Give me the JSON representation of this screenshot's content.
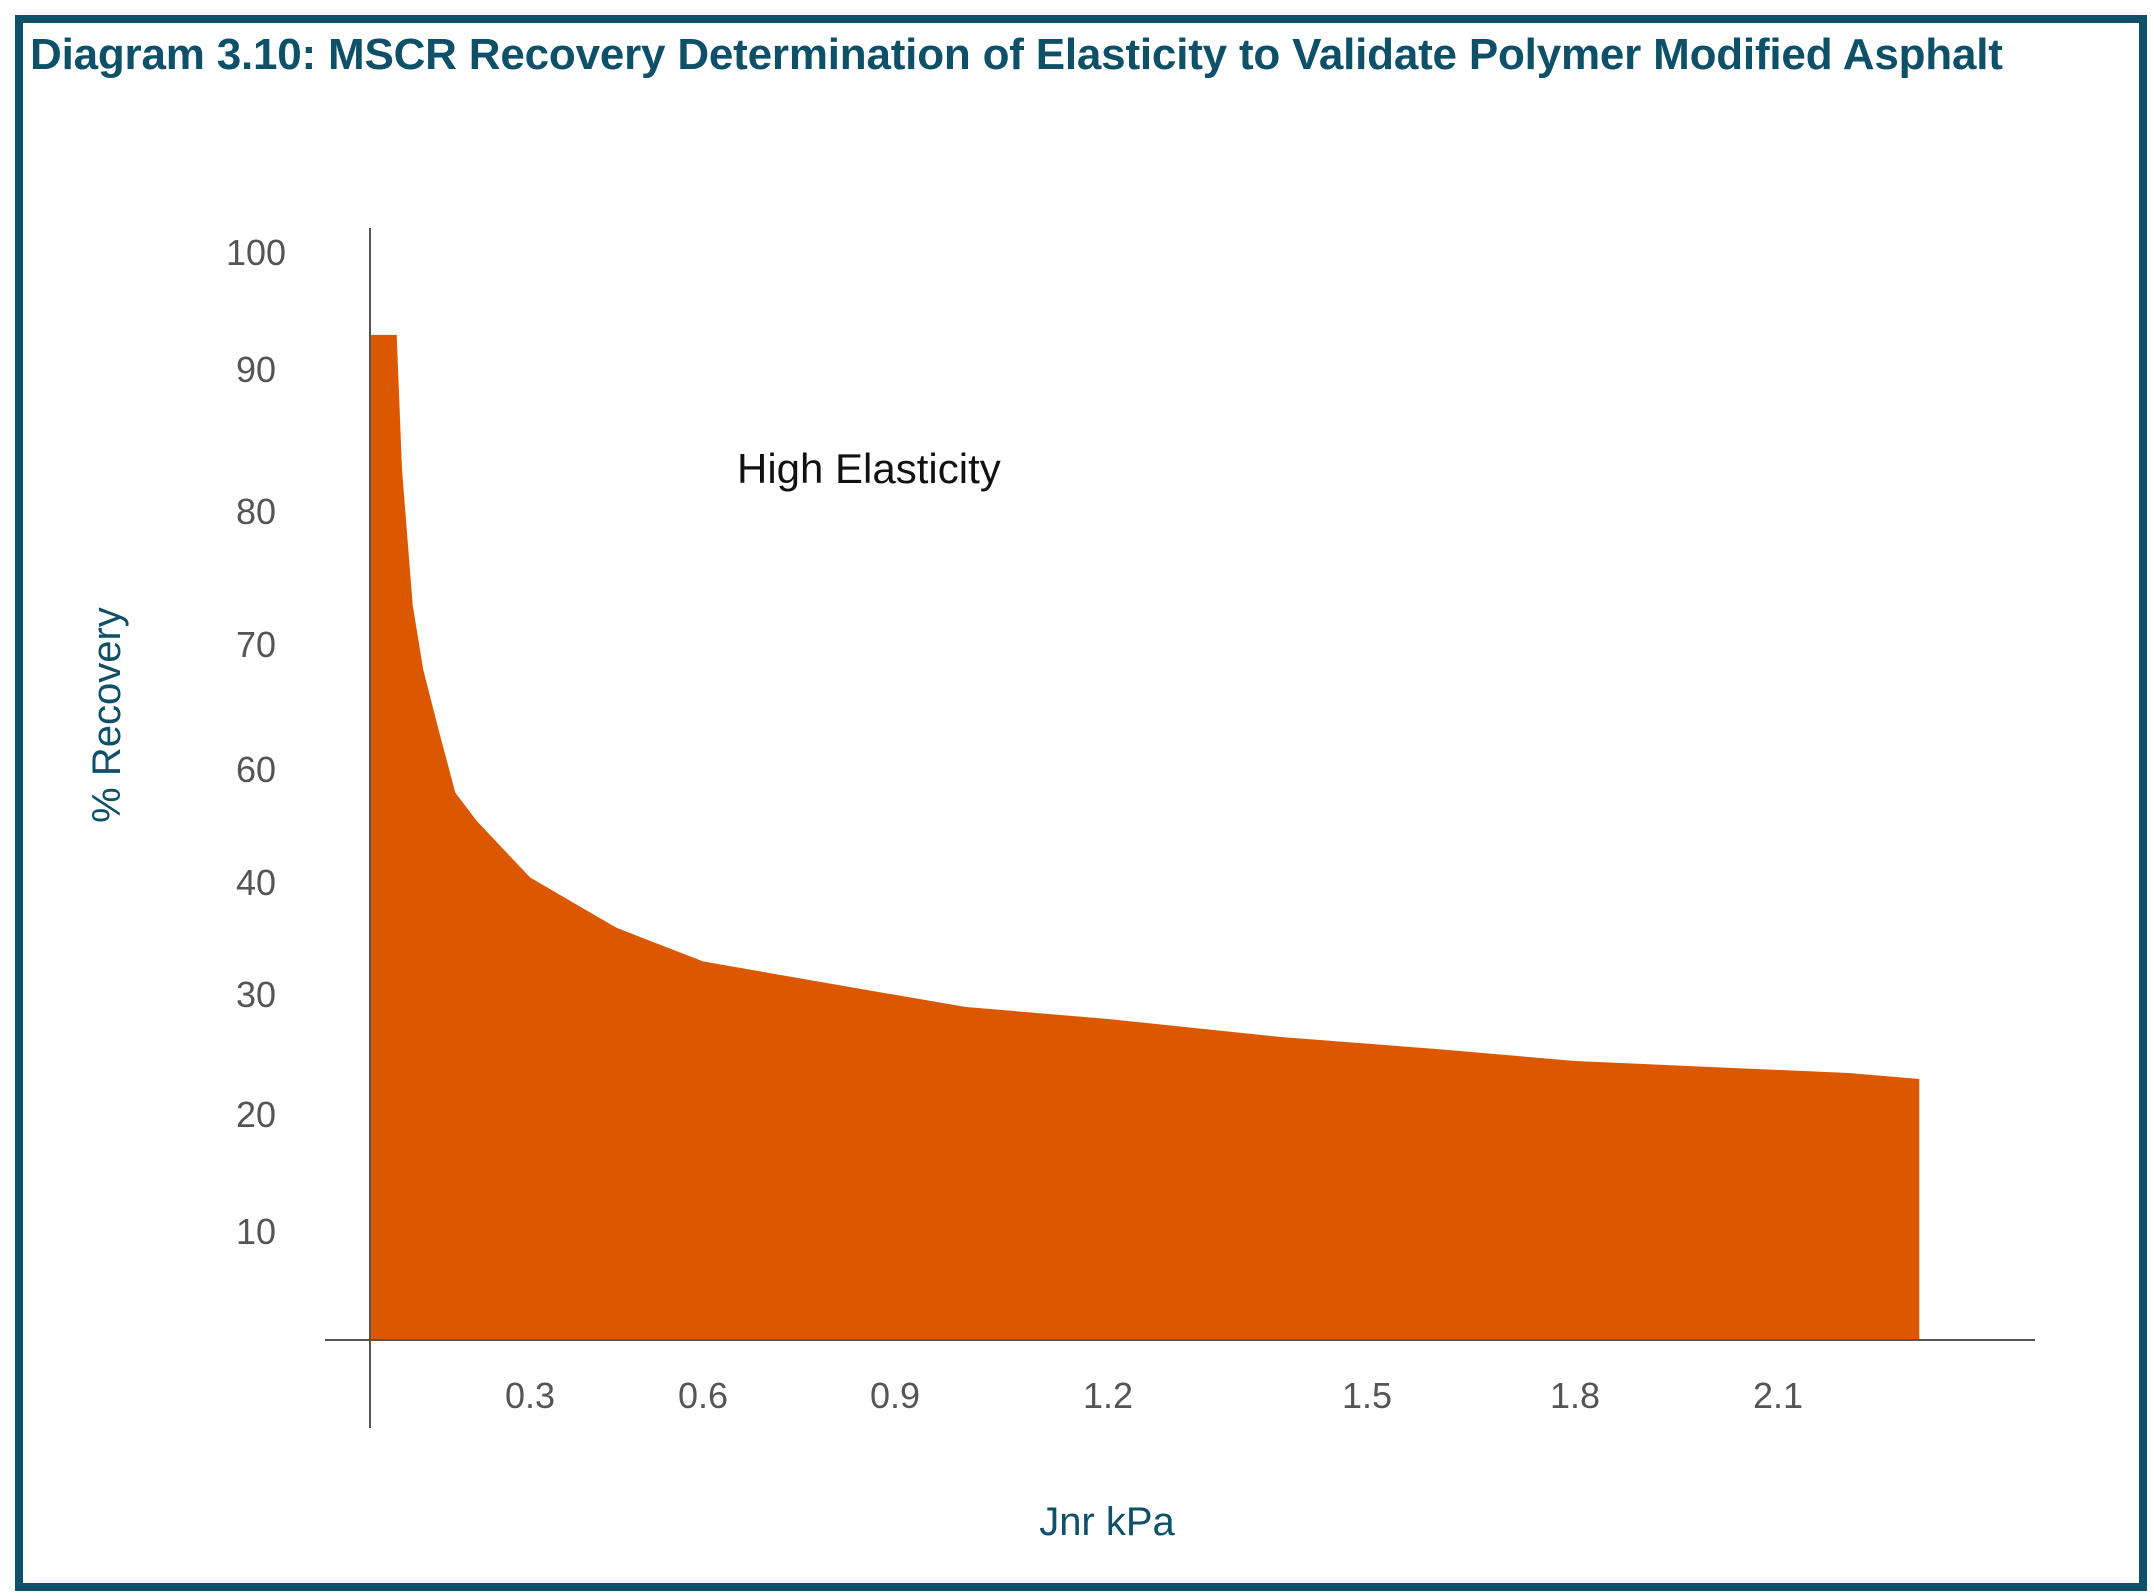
{
  "title": "Diagram 3.10: MSCR Recovery Determination of Elasticity to Validate Polymer Modified Asphalt",
  "colors": {
    "frame": "#0d5068",
    "title": "#0d5068",
    "fill": "#db5800",
    "axis": "#555555",
    "tick_text": "#555555",
    "axis_title": "#0d5068"
  },
  "chart_data": {
    "type": "area",
    "title": "Diagram 3.10: MSCR Recovery Determination of Elasticity to Validate Polymer Modified Asphalt",
    "xlabel": "Jnr kPa",
    "ylabel": "% Recovery",
    "x_ticks": [
      "0.3",
      "0.6",
      "0.9",
      "1.2",
      "1.5",
      "1.8",
      "2.1"
    ],
    "y_ticks": [
      "10",
      "20",
      "30",
      "40",
      "60",
      "70",
      "80",
      "90",
      "100"
    ],
    "annotations": [
      "High Elasticity"
    ],
    "grid": false,
    "legend": "none",
    "series": [
      {
        "x": [
          0.04,
          0.05,
          0.06,
          0.08,
          0.1,
          0.13,
          0.16,
          0.2,
          0.25,
          0.3,
          0.35,
          0.45,
          0.6,
          0.8,
          1.0,
          1.2,
          1.4,
          1.6,
          1.8,
          2.0,
          2.2,
          2.3
        ],
        "y": [
          93,
          93,
          83,
          73,
          68,
          63,
          56,
          51,
          46,
          41,
          39,
          36,
          33,
          31,
          29,
          28,
          26.5,
          25.5,
          24.5,
          24,
          23.5,
          23
        ]
      }
    ]
  }
}
